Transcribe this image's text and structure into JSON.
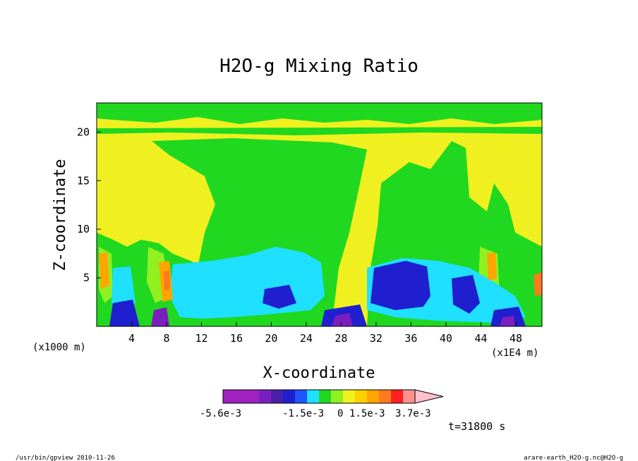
{
  "chart_data": {
    "type": "heatmap",
    "title": "H2O-g Mixing Ratio",
    "xlabel": "X-coordinate",
    "ylabel": "Z-coordinate",
    "x_unit": "(x1000 m)",
    "x_unit_right": "(x1E4 m)",
    "xlim": [
      0,
      51
    ],
    "ylim": [
      0,
      23
    ],
    "x_ticks": [
      4,
      8,
      12,
      16,
      20,
      24,
      28,
      32,
      36,
      40,
      44,
      48
    ],
    "y_ticks": [
      5,
      10,
      15,
      20
    ],
    "time_label": "t=31800 s",
    "colorbar": {
      "colors": [
        "#a020c0",
        "#a020c0",
        "#a020c0",
        "#7a1fbf",
        "#4a1fa8",
        "#1f1fd0",
        "#1f55ff",
        "#1fe0ff",
        "#1fd81f",
        "#90f020",
        "#f0f020",
        "#ffd000",
        "#ffa500",
        "#ff7a1f",
        "#ff2020",
        "#ff9090"
      ],
      "labels": [
        "-5.6e-3",
        "-1.5e-3",
        "0",
        "1.5e-3",
        "3.7e-3"
      ],
      "extends_right": true,
      "arrow_color": "#ffc0cb"
    },
    "field_colors": {
      "yellow": "#f0f020",
      "green": "#1fd81f",
      "cyan": "#1fe0ff",
      "blue": "#1f1fd0",
      "light_green": "#90f020",
      "orange": "#ffa500",
      "dark_orange": "#ff7a1f",
      "purple": "#7a1fbf"
    }
  },
  "footer": {
    "left": "/usr/bin/gpview  2010-11-26",
    "right": "arare-earth_H2O-g.nc@H2O-g"
  }
}
